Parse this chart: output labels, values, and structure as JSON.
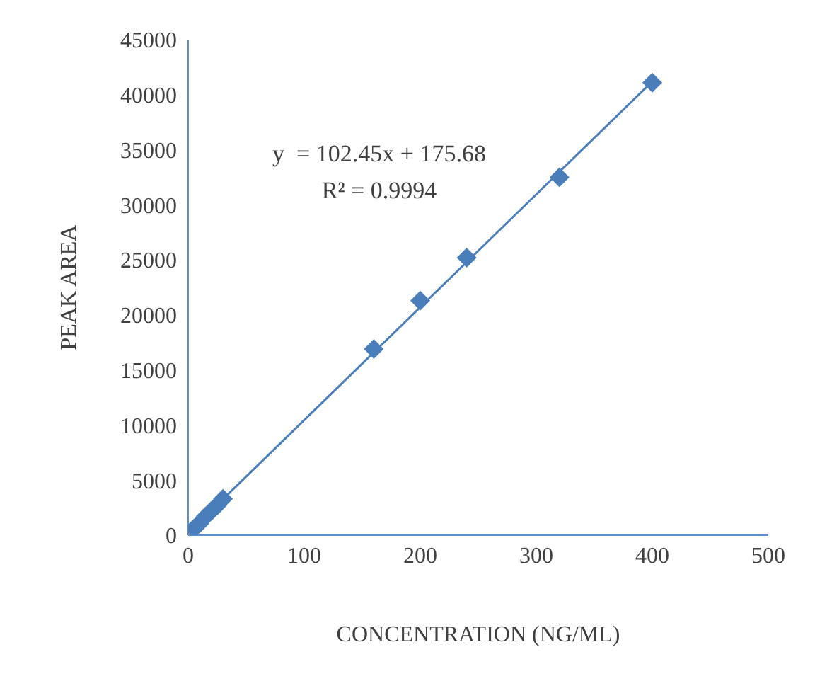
{
  "chart_data": {
    "type": "scatter",
    "xlabel": "CONCENTRATION (NG/ML)",
    "ylabel": "PEAK AREA",
    "xlim": [
      0,
      500
    ],
    "xticks": [
      0,
      100,
      200,
      300,
      400,
      500
    ],
    "ylim": [
      0,
      45000
    ],
    "yticks": [
      0,
      5000,
      10000,
      15000,
      20000,
      25000,
      30000,
      35000,
      40000,
      45000
    ],
    "grid": false,
    "legend": false,
    "marker": "diamond",
    "series": [
      {
        "color": "#4a7ebb",
        "x": [
          5,
          10,
          15,
          20,
          25,
          30,
          160,
          200,
          240,
          320,
          400
        ],
        "values": [
          600,
          1100,
          1700,
          2200,
          2700,
          3300,
          16900,
          21300,
          25200,
          32500,
          41100
        ]
      },
      {
        "type": "line",
        "color": "#4a7ebb",
        "marker": "none",
        "x": [
          0,
          400
        ],
        "values": [
          200,
          41200
        ]
      }
    ],
    "annotations": [
      "y  = 102.45x + 175.68",
      "R² = 0.9994"
    ]
  }
}
